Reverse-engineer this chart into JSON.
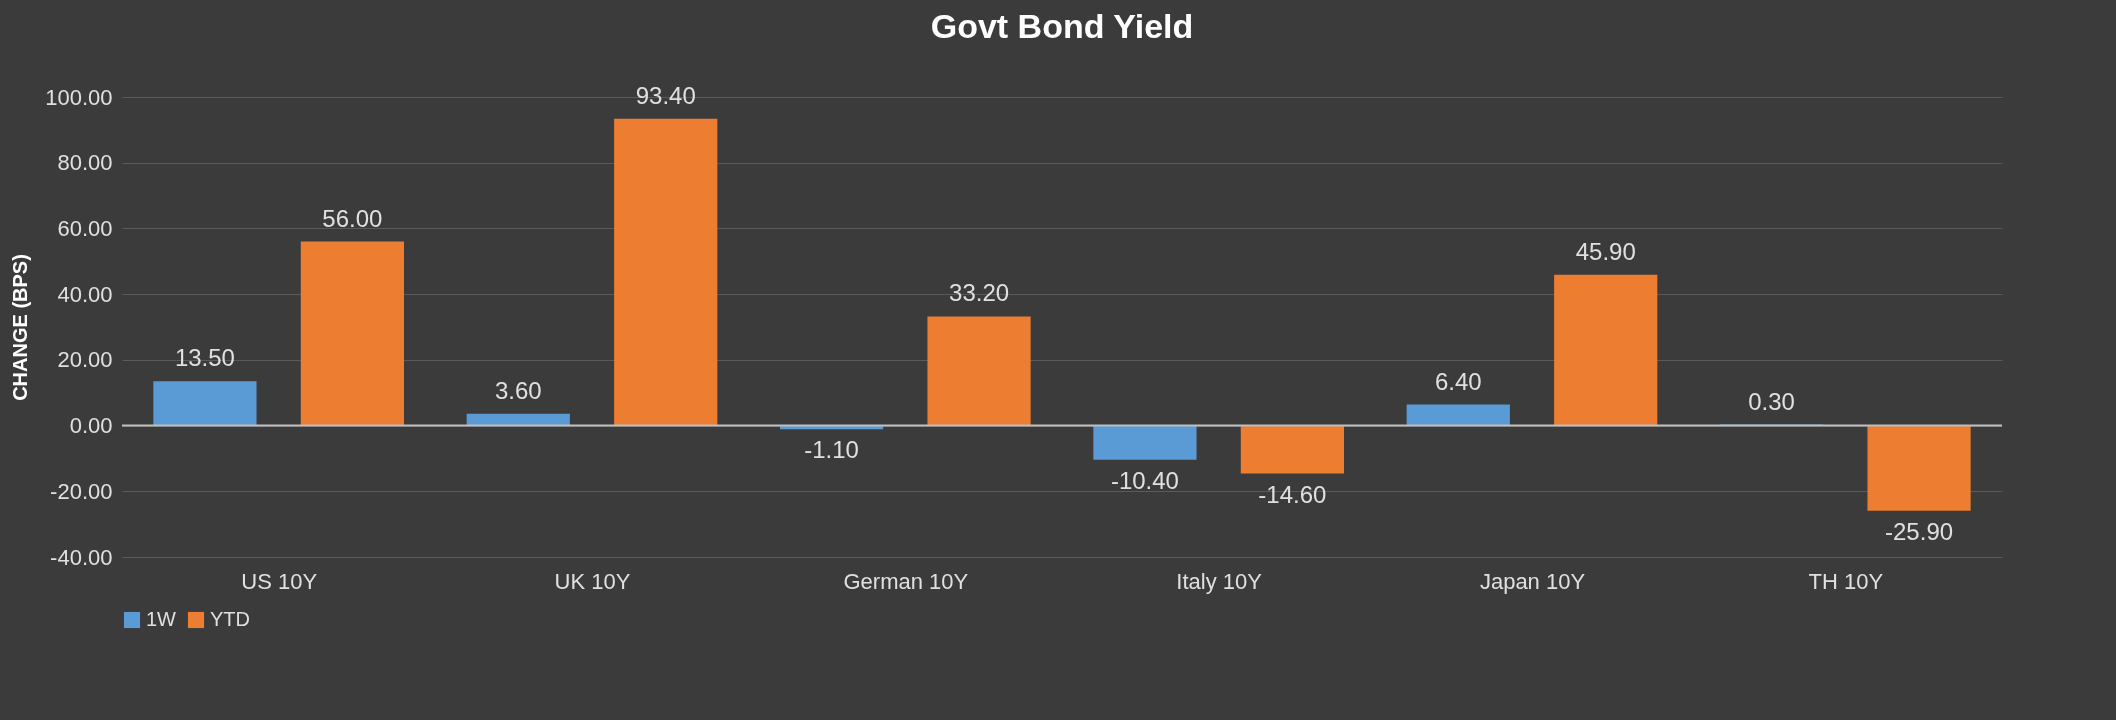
{
  "chart_data": {
    "type": "bar",
    "title": "Govt Bond Yield",
    "ylabel": "CHANGE (BPS)",
    "categories": [
      "US 10Y",
      "UK 10Y",
      "German 10Y",
      "Italy 10Y",
      "Japan 10Y",
      "TH 10Y"
    ],
    "series": [
      {
        "name": "1W",
        "color": "#5b9bd5",
        "values": [
          13.5,
          3.6,
          -1.1,
          -10.4,
          6.4,
          0.3
        ],
        "value_labels": [
          "13.50",
          "3.60",
          "-1.10",
          "-10.40",
          "6.40",
          "0.30"
        ]
      },
      {
        "name": "YTD",
        "color": "#ed7d31",
        "values": [
          56.0,
          93.4,
          33.2,
          -14.6,
          45.9,
          -25.9
        ],
        "value_labels": [
          "56.00",
          "93.40",
          "33.20",
          "-14.60",
          "45.90",
          "-25.90"
        ]
      }
    ],
    "ylim": [
      -40,
      100
    ],
    "yticks": [
      {
        "value": -40,
        "label": "-40.00"
      },
      {
        "value": -20,
        "label": "-20.00"
      },
      {
        "value": 0,
        "label": "0.00"
      },
      {
        "value": 20,
        "label": "20.00"
      },
      {
        "value": 40,
        "label": "40.00"
      },
      {
        "value": 60,
        "label": "60.00"
      },
      {
        "value": 80,
        "label": "80.00"
      },
      {
        "value": 100,
        "label": "100.00"
      }
    ],
    "grid": "y",
    "legend": "bottom"
  }
}
